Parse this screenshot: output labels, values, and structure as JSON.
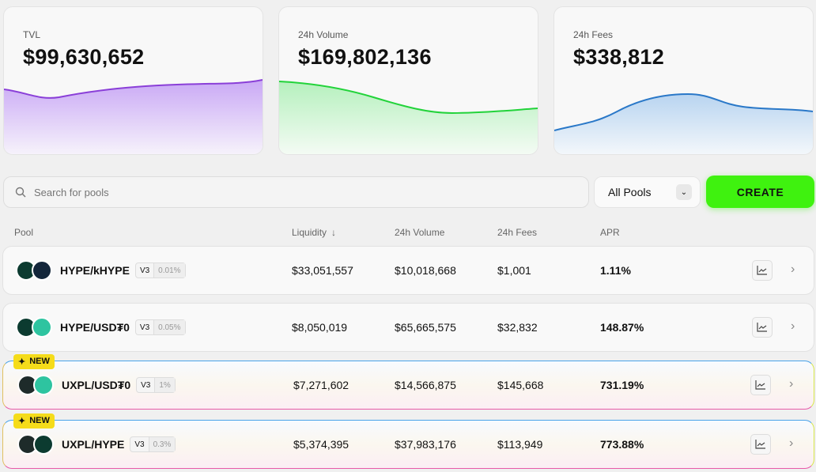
{
  "stats": [
    {
      "label": "TVL",
      "value": "$99,630,652",
      "color": "#8a3fd8"
    },
    {
      "label": "24h Volume",
      "value": "$169,802,136",
      "color": "#22d33a"
    },
    {
      "label": "24h Fees",
      "value": "$338,812",
      "color": "#2a78c8"
    }
  ],
  "search": {
    "placeholder": "Search for pools"
  },
  "filter": {
    "selected": "All Pools"
  },
  "create_label": "CREATE",
  "columns": {
    "pool": "Pool",
    "liquidity": "Liquidity",
    "volume": "24h Volume",
    "fees": "24h Fees",
    "apr": "APR"
  },
  "new_badge": "NEW",
  "pools": [
    {
      "name": "HYPE/kHYPE",
      "version": "V3",
      "fee": "0.01%",
      "liquidity": "$33,051,557",
      "volume": "$10,018,668",
      "fees": "$1,001",
      "apr": "1.11%"
    },
    {
      "name": "HYPE/USD₮0",
      "version": "V3",
      "fee": "0.05%",
      "liquidity": "$8,050,019",
      "volume": "$65,665,575",
      "fees": "$32,832",
      "apr": "148.87%"
    },
    {
      "name": "UXPL/USD₮0",
      "version": "V3",
      "fee": "1%",
      "liquidity": "$7,271,602",
      "volume": "$14,566,875",
      "fees": "$145,668",
      "apr": "731.19%"
    },
    {
      "name": "UXPL/HYPE",
      "version": "V3",
      "fee": "0.3%",
      "liquidity": "$5,374,395",
      "volume": "$37,983,176",
      "fees": "$113,949",
      "apr": "773.88%"
    }
  ]
}
